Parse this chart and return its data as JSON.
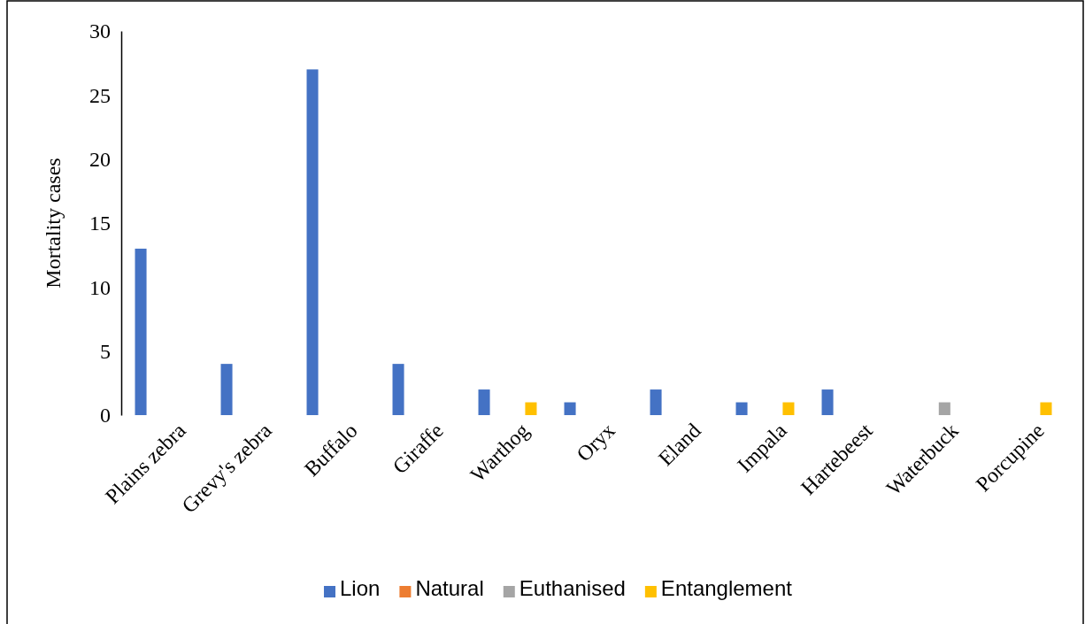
{
  "chart_data": {
    "type": "bar",
    "ylabel": "Mortality cases",
    "categories": [
      "Plains zebra",
      "Grevy's zebra",
      "Buffalo",
      "Giraffe",
      "Warthog",
      "Oryx",
      "Eland",
      "Impala",
      "Hartebeest",
      "Waterbuck",
      "Porcupine"
    ],
    "series": [
      {
        "name": "Lion",
        "color": "#4472c4",
        "values": [
          13,
          4,
          27,
          4,
          2,
          1,
          2,
          1,
          2,
          0,
          0
        ]
      },
      {
        "name": "Natural",
        "color": "#ed7d31",
        "values": [
          0,
          0,
          0,
          0,
          0,
          0,
          0,
          0,
          0,
          0,
          0
        ]
      },
      {
        "name": "Euthanised",
        "color": "#a5a5a5",
        "values": [
          0,
          0,
          0,
          0,
          0,
          0,
          0,
          0,
          0,
          1,
          0
        ]
      },
      {
        "name": "Entanglement",
        "color": "#ffc000",
        "values": [
          0,
          0,
          0,
          0,
          1,
          0,
          0,
          1,
          0,
          0,
          1
        ]
      }
    ],
    "ylim": [
      0,
      30
    ],
    "yticks": [
      0,
      5,
      10,
      15,
      20,
      25,
      30
    ],
    "grid": false,
    "legend": "bottom"
  }
}
